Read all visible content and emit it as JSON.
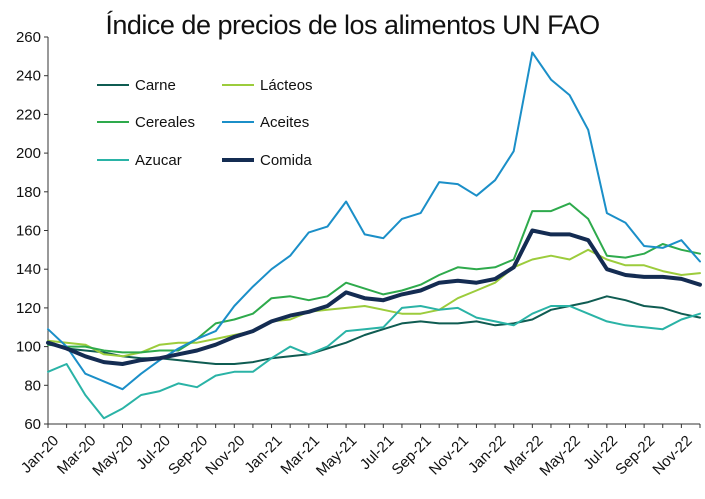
{
  "chart_data": {
    "type": "line",
    "title": "Índice de precios de los alimentos UN FAO",
    "xlabel": "",
    "ylabel": "",
    "ylim": [
      60,
      260
    ],
    "yticks": [
      60,
      80,
      100,
      120,
      140,
      160,
      180,
      200,
      220,
      240,
      260
    ],
    "grid": false,
    "legend_position": "top-left",
    "categories": [
      "Jan-20",
      "Feb-20",
      "Mar-20",
      "Apr-20",
      "May-20",
      "Jun-20",
      "Jul-20",
      "Aug-20",
      "Sep-20",
      "Oct-20",
      "Nov-20",
      "Dec-20",
      "Jan-21",
      "Feb-21",
      "Mar-21",
      "Apr-21",
      "May-21",
      "Jun-21",
      "Jul-21",
      "Aug-21",
      "Sep-21",
      "Oct-21",
      "Nov-21",
      "Dec-21",
      "Jan-22",
      "Feb-22",
      "Mar-22",
      "Apr-22",
      "May-22",
      "Jun-22",
      "Jul-22",
      "Aug-22",
      "Sep-22",
      "Oct-22",
      "Nov-22",
      "Dec-22"
    ],
    "xtick_labels": [
      "Jan-20",
      "Mar-20",
      "May-20",
      "Jul-20",
      "Sep-20",
      "Nov-20",
      "Jan-21",
      "Mar-21",
      "May-21",
      "Jul-21",
      "Sep-21",
      "Nov-21",
      "Jan-22",
      "Mar-22",
      "May-22",
      "Jul-22",
      "Sep-22",
      "Nov-22"
    ],
    "series": [
      {
        "name": "Carne",
        "color": "#0f5c52",
        "width": 2,
        "values": [
          102,
          99,
          98,
          97,
          95,
          94,
          94,
          93,
          92,
          91,
          91,
          92,
          94,
          95,
          96,
          99,
          102,
          106,
          109,
          112,
          113,
          112,
          112,
          113,
          111,
          112,
          114,
          119,
          121,
          123,
          126,
          124,
          121,
          120,
          117,
          115
        ]
      },
      {
        "name": "Lácteos",
        "color": "#9ccc3c",
        "width": 2,
        "values": [
          103,
          102,
          101,
          96,
          95,
          97,
          101,
          102,
          102,
          104,
          106,
          108,
          113,
          114,
          118,
          119,
          120,
          121,
          119,
          117,
          117,
          119,
          125,
          129,
          133,
          141,
          145,
          147,
          145,
          150,
          145,
          142,
          142,
          139,
          137,
          138
        ]
      },
      {
        "name": "Cereales",
        "color": "#2eaa4c",
        "width": 2,
        "values": [
          101,
          100,
          100,
          98,
          97,
          97,
          98,
          98,
          104,
          112,
          114,
          117,
          125,
          126,
          124,
          126,
          133,
          130,
          127,
          129,
          132,
          137,
          141,
          140,
          141,
          145,
          170,
          170,
          174,
          166,
          147,
          146,
          148,
          153,
          150,
          148
        ]
      },
      {
        "name": "Aceites",
        "color": "#1b8fc8",
        "width": 2,
        "values": [
          109,
          100,
          86,
          82,
          78,
          86,
          93,
          99,
          104,
          108,
          121,
          131,
          140,
          147,
          159,
          162,
          175,
          158,
          156,
          166,
          169,
          185,
          184,
          178,
          186,
          201,
          252,
          238,
          230,
          212,
          169,
          164,
          152,
          151,
          155,
          144
        ]
      },
      {
        "name": "Azucar",
        "color": "#2ab3a6",
        "width": 2,
        "values": [
          87,
          91,
          75,
          63,
          68,
          75,
          77,
          81,
          79,
          85,
          87,
          87,
          94,
          100,
          96,
          100,
          108,
          109,
          110,
          120,
          121,
          119,
          120,
          115,
          113,
          111,
          117,
          121,
          121,
          117,
          113,
          111,
          110,
          109,
          114,
          117
        ]
      },
      {
        "name": "Comida",
        "color": "#142c52",
        "width": 4,
        "values": [
          102,
          99,
          95,
          92,
          91,
          93,
          94,
          96,
          98,
          101,
          105,
          108,
          113,
          116,
          118,
          121,
          128,
          125,
          124,
          127,
          129,
          133,
          134,
          133,
          135,
          141,
          160,
          158,
          158,
          155,
          140,
          137,
          136,
          136,
          135,
          132
        ]
      }
    ]
  }
}
